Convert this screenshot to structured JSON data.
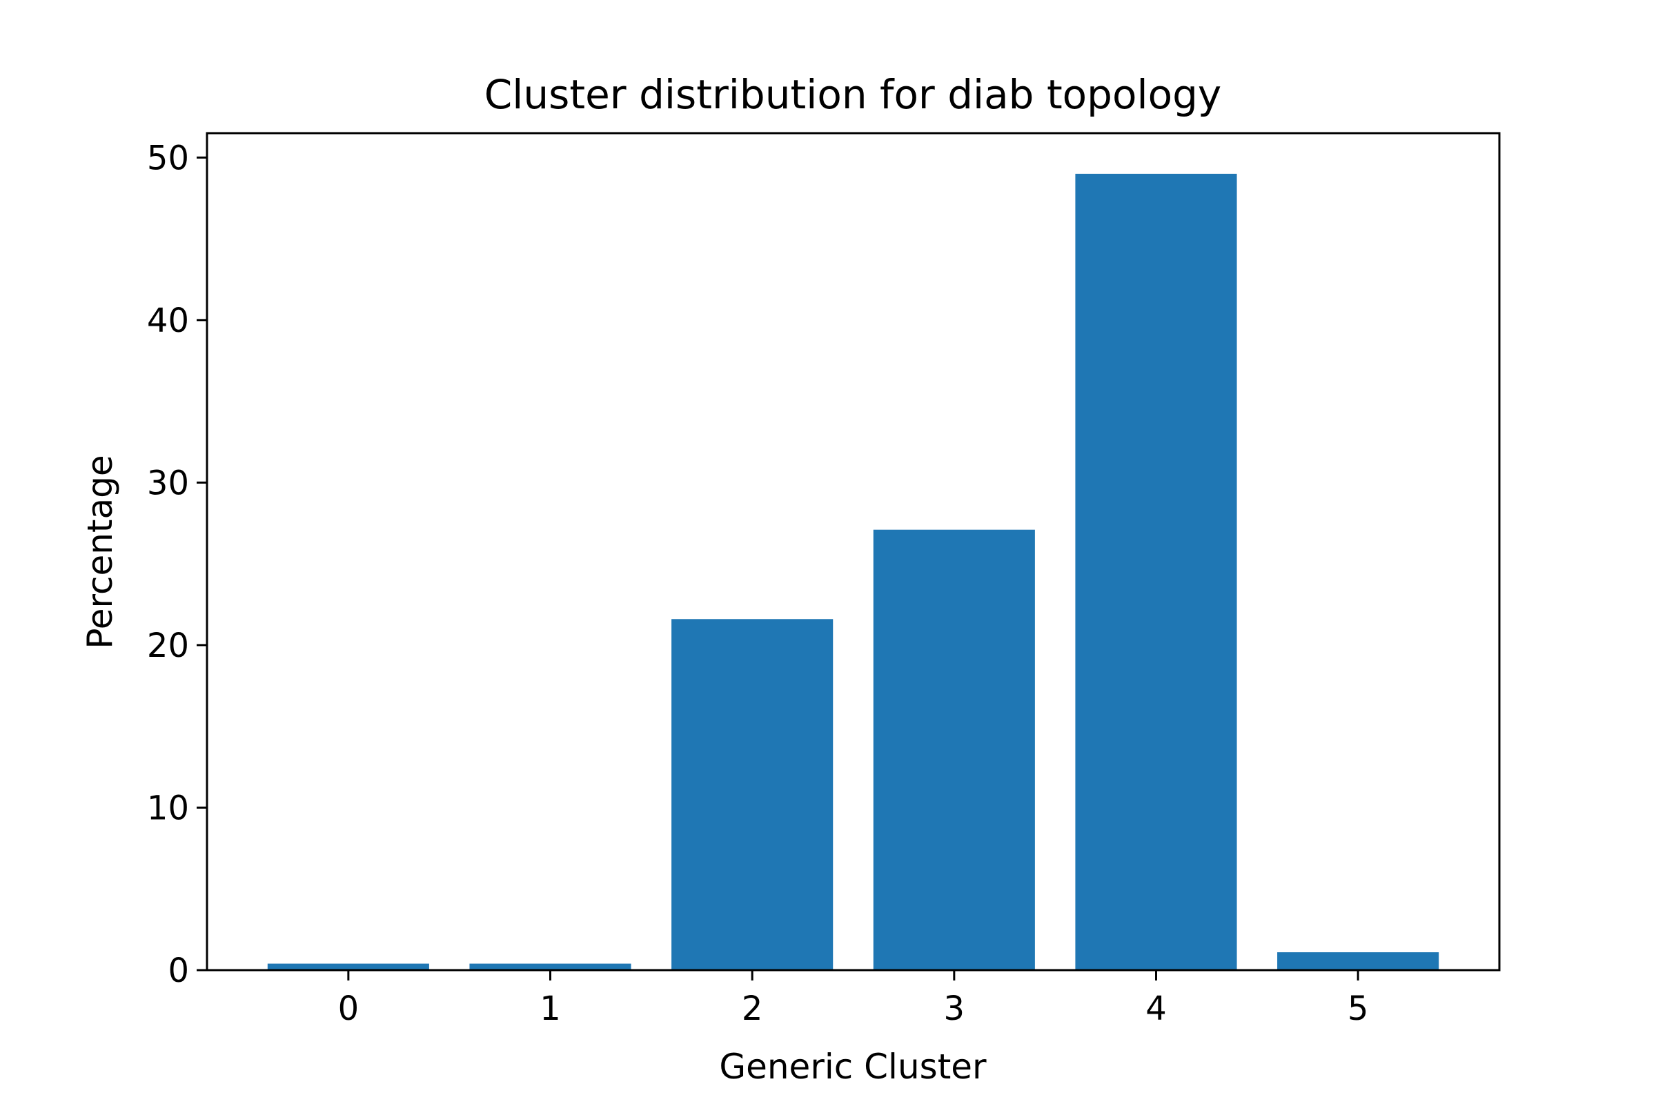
{
  "chart_data": {
    "type": "bar",
    "title": "Cluster distribution for diab topology",
    "xlabel": "Generic Cluster",
    "ylabel": "Percentage",
    "categories": [
      "0",
      "1",
      "2",
      "3",
      "4",
      "5"
    ],
    "values": [
      0.4,
      0.4,
      21.6,
      27.1,
      49.0,
      1.1
    ],
    "ylim": [
      0,
      51.5
    ],
    "yticks": [
      0,
      10,
      20,
      30,
      40,
      50
    ],
    "xticks": [
      "0",
      "1",
      "2",
      "3",
      "4",
      "5"
    ],
    "bar_color": "#1f77b4",
    "grid": false,
    "legend": "none"
  }
}
